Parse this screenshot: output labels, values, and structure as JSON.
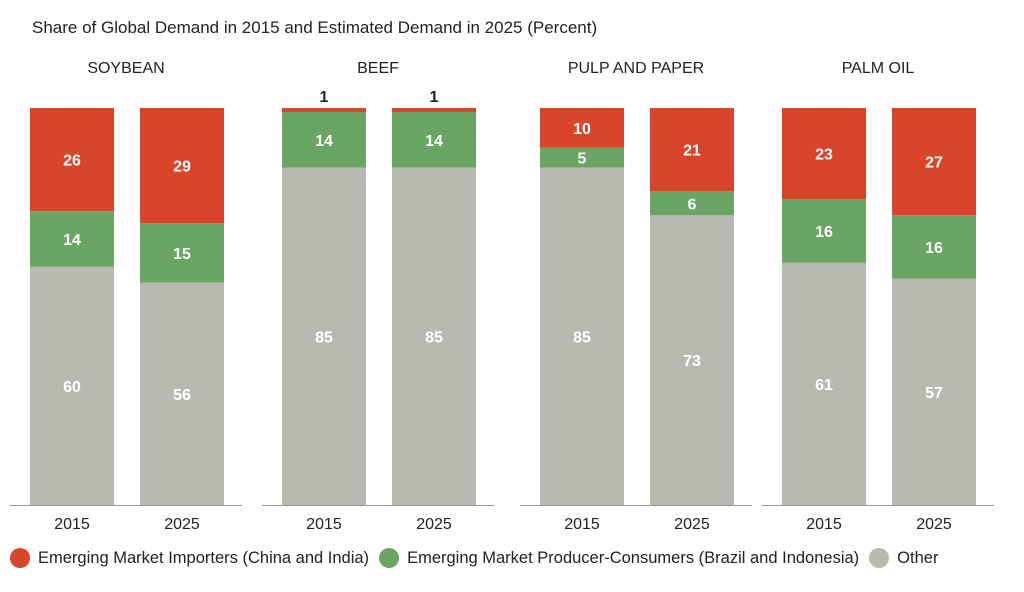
{
  "title": "Share of Global Demand in 2015 and Estimated Demand in 2025 (Percent)",
  "colors": {
    "importers": "#d9452a",
    "producers": "#6aa564",
    "other": "#b9b9b2"
  },
  "legend": [
    {
      "label": "Emerging Market Importers (China and India)",
      "color": "#d9452a"
    },
    {
      "label": "Emerging Market Producer-Consumers (Brazil and Indonesia)",
      "color": "#6aa564"
    },
    {
      "label": "Other",
      "color": "#b9b9b2"
    }
  ],
  "chart_data": {
    "type": "bar",
    "stacked": true,
    "title": "Share of Global Demand in 2015 and Estimated Demand in 2025 (Percent)",
    "series_order": [
      "Other",
      "Emerging Market Producer-Consumers (Brazil and Indonesia)",
      "Emerging Market Importers (China and India)"
    ],
    "panels": [
      {
        "name": "SOYBEAN",
        "categories": [
          "2015",
          "2025"
        ],
        "series": [
          {
            "name": "Other",
            "values": [
              60,
              56
            ]
          },
          {
            "name": "Emerging Market Producer-Consumers (Brazil and Indonesia)",
            "values": [
              14,
              15
            ]
          },
          {
            "name": "Emerging Market Importers (China and India)",
            "values": [
              26,
              29
            ]
          }
        ]
      },
      {
        "name": "BEEF",
        "categories": [
          "2015",
          "2025"
        ],
        "series": [
          {
            "name": "Other",
            "values": [
              85,
              85
            ]
          },
          {
            "name": "Emerging Market Producer-Consumers (Brazil and Indonesia)",
            "values": [
              14,
              14
            ]
          },
          {
            "name": "Emerging Market Importers (China and India)",
            "values": [
              1,
              1
            ]
          }
        ]
      },
      {
        "name": "PULP AND PAPER",
        "categories": [
          "2015",
          "2025"
        ],
        "series": [
          {
            "name": "Other",
            "values": [
              85,
              73
            ]
          },
          {
            "name": "Emerging Market Producer-Consumers (Brazil and Indonesia)",
            "values": [
              5,
              6
            ]
          },
          {
            "name": "Emerging Market Importers (China and India)",
            "values": [
              10,
              21
            ]
          }
        ]
      },
      {
        "name": "PALM OIL",
        "categories": [
          "2015",
          "2025"
        ],
        "series": [
          {
            "name": "Other",
            "values": [
              61,
              57
            ]
          },
          {
            "name": "Emerging Market Producer-Consumers (Brazil and Indonesia)",
            "values": [
              16,
              16
            ]
          },
          {
            "name": "Emerging Market Importers (China and India)",
            "values": [
              23,
              27
            ]
          }
        ]
      }
    ],
    "legend_position": "bottom"
  }
}
